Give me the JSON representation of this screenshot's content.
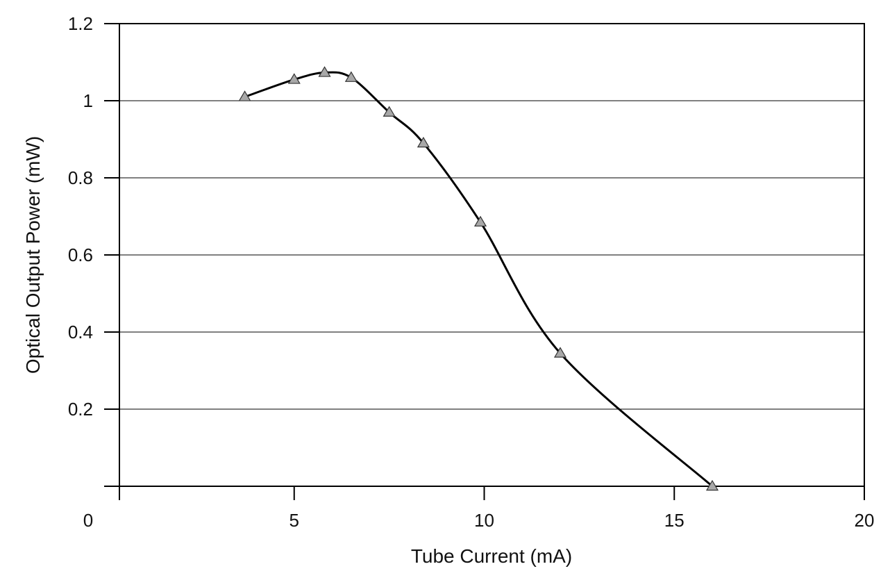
{
  "chart_data": {
    "type": "line",
    "title": "",
    "xlabel": "Tube Current (mA)",
    "ylabel": "Optical Output Power (mW)",
    "xlim": [
      0,
      20
    ],
    "ylim": [
      0,
      1.2
    ],
    "x_ticks": [
      0,
      5,
      10,
      15,
      20
    ],
    "y_ticks": [
      0.2,
      0.4,
      0.6,
      0.8,
      1,
      1.2
    ],
    "x_tick_labels": [
      "0",
      "5",
      "10",
      "15",
      "20"
    ],
    "y_tick_labels": [
      "0.2",
      "0.4",
      "0.6",
      "0.8",
      "1",
      "1.2"
    ],
    "grid": "horizontal",
    "series": [
      {
        "marker": "triangle",
        "line_color": "#000000",
        "marker_fill": "#a8a8a8",
        "points": [
          {
            "x": 3.7,
            "y": 1.01
          },
          {
            "x": 5.0,
            "y": 1.055
          },
          {
            "x": 5.8,
            "y": 1.073
          },
          {
            "x": 6.5,
            "y": 1.06
          },
          {
            "x": 7.5,
            "y": 0.97
          },
          {
            "x": 8.4,
            "y": 0.89
          },
          {
            "x": 9.9,
            "y": 0.685
          },
          {
            "x": 12.0,
            "y": 0.345
          },
          {
            "x": 16.0,
            "y": 0.0
          }
        ]
      }
    ]
  }
}
